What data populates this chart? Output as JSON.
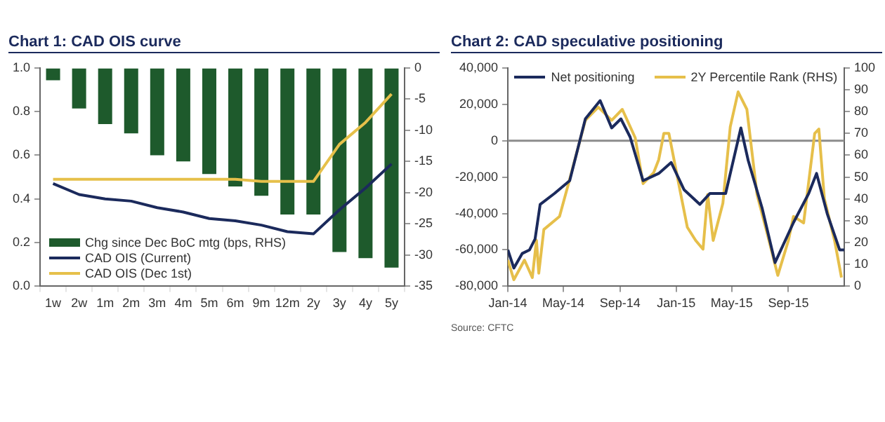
{
  "chart_data": [
    {
      "type": "bar",
      "title": "Chart 1: CAD OIS curve",
      "categories": [
        "1w",
        "2w",
        "1m",
        "2m",
        "3m",
        "4m",
        "5m",
        "6m",
        "9m",
        "12m",
        "2y",
        "3y",
        "4y",
        "5y"
      ],
      "series": [
        {
          "name": "Chg since Dec BoC mtg (bps, RHS)",
          "type": "bar",
          "axis": "y2",
          "color": "#1e5a2c",
          "values": [
            -2,
            -6.5,
            -9,
            -10.5,
            -14,
            -15,
            -17,
            -19,
            -20.5,
            -23.5,
            -23.5,
            -29.5,
            -30.5,
            -32
          ]
        },
        {
          "name": "CAD OIS (Current)",
          "type": "line",
          "color": "#1b2a5c",
          "values": [
            0.47,
            0.42,
            0.4,
            0.39,
            0.36,
            0.34,
            0.31,
            0.3,
            0.28,
            0.25,
            0.24,
            0.35,
            0.45,
            0.56
          ]
        },
        {
          "name": "CAD OIS (Dec 1st)",
          "type": "line",
          "color": "#e6c04a",
          "values": [
            0.49,
            0.49,
            0.49,
            0.49,
            0.49,
            0.49,
            0.49,
            0.49,
            0.48,
            0.48,
            0.48,
            0.65,
            0.75,
            0.88
          ]
        }
      ],
      "ylim": [
        0,
        1
      ],
      "yticks": [
        {
          "value": 0,
          "label": "0.0"
        },
        0.2,
        0.4,
        0.6,
        0.8,
        {
          "value": 1,
          "label": "1.0"
        }
      ],
      "y2lim": [
        -35,
        0
      ],
      "y2ticks": [
        -35,
        -30,
        -25,
        -20,
        -15,
        -10,
        -5,
        0
      ],
      "legend": "bottom left",
      "marker": "none",
      "grid": false
    },
    {
      "type": "line",
      "title": "Chart 2: CAD speculative positioning",
      "series": [
        {
          "name": "Net positioning",
          "color": "#1b2a5c",
          "x": [
            "2014-01-01",
            "2014-01-14",
            "2014-02-01",
            "2014-02-17",
            "2014-03-01",
            "2014-03-12",
            "2014-04-12",
            "2014-05-15",
            "2014-06-18",
            "2014-07-20",
            "2014-08-14",
            "2014-09-03",
            "2014-09-23",
            "2014-10-21",
            "2014-11-24",
            "2014-12-21",
            "2015-01-18",
            "2015-02-21",
            "2015-03-15",
            "2015-04-18",
            "2015-05-21",
            "2015-06-06",
            "2015-07-06",
            "2015-08-03",
            "2015-09-12",
            "2015-10-15",
            "2015-11-01",
            "2015-11-24",
            "2015-12-21",
            "2015-12-31"
          ],
          "values": [
            -60000,
            -70000,
            -62000,
            -60000,
            -54000,
            -35000,
            -29000,
            -22000,
            12000,
            22000,
            7000,
            12000,
            2000,
            -22000,
            -18000,
            -12000,
            -27000,
            -35000,
            -29000,
            -29000,
            7000,
            -11000,
            -37000,
            -67000,
            -45000,
            -29000,
            -18000,
            -40000,
            -60000,
            -60000
          ]
        },
        {
          "name": "2Y Percentile Rank (RHS)",
          "color": "#e6bf4a",
          "axis": "y2",
          "x": [
            "2014-01-01",
            "2014-01-14",
            "2014-02-06",
            "2014-02-23",
            "2014-03-04",
            "2014-03-09",
            "2014-03-20",
            "2014-04-23",
            "2014-05-15",
            "2014-06-18",
            "2014-07-16",
            "2014-08-14",
            "2014-09-06",
            "2014-10-04",
            "2014-10-21",
            "2014-11-13",
            "2014-11-24",
            "2014-12-05",
            "2014-12-16",
            "2015-01-09",
            "2015-01-25",
            "2015-02-12",
            "2015-02-28",
            "2015-03-10",
            "2015-03-22",
            "2015-04-12",
            "2015-04-28",
            "2015-05-15",
            "2015-06-03",
            "2015-06-25",
            "2015-07-16",
            "2015-08-09",
            "2015-09-01",
            "2015-09-12",
            "2015-10-04",
            "2015-10-28",
            "2015-11-06",
            "2015-11-18",
            "2015-12-10",
            "2015-12-25"
          ],
          "values": [
            12,
            3,
            12,
            4,
            21,
            6,
            26,
            32,
            49,
            76,
            82,
            76,
            81,
            68,
            47,
            52,
            58,
            70,
            70,
            44,
            27,
            21,
            17,
            42,
            21,
            38,
            73,
            89,
            81,
            42,
            25,
            5,
            21,
            32,
            29,
            70,
            72,
            40,
            21,
            4
          ]
        }
      ],
      "xlim": [
        "2014-01-01",
        "2015-12-31"
      ],
      "xticks": [
        {
          "value": "2014-01-01",
          "label": "Jan-14"
        },
        {
          "value": "2014-05-01",
          "label": "May-14"
        },
        {
          "value": "2014-09-01",
          "label": "Sep-14"
        },
        {
          "value": "2015-01-01",
          "label": "Jan-15"
        },
        {
          "value": "2015-05-01",
          "label": "May-15"
        },
        {
          "value": "2015-09-01",
          "label": "Sep-15"
        }
      ],
      "ylim": [
        -80000,
        40000
      ],
      "yticks": [
        {
          "value": -80000,
          "label": "-80,000"
        },
        {
          "value": -60000,
          "label": "-60,000"
        },
        {
          "value": -40000,
          "label": "-40,000"
        },
        {
          "value": -20000,
          "label": "-20,000"
        },
        0,
        {
          "value": 20000,
          "label": "20,000"
        },
        {
          "value": 40000,
          "label": "40,000"
        }
      ],
      "y2lim": [
        0,
        100
      ],
      "y2ticks": [
        0,
        10,
        20,
        30,
        40,
        50,
        60,
        70,
        80,
        90,
        100
      ],
      "ref_lines": [
        {
          "axis": "y",
          "value": 0,
          "color": "#8c8c8c"
        }
      ],
      "annotations": [
        "Source: CFTC"
      ],
      "legend": "top",
      "marker": "none",
      "grid": false
    }
  ]
}
